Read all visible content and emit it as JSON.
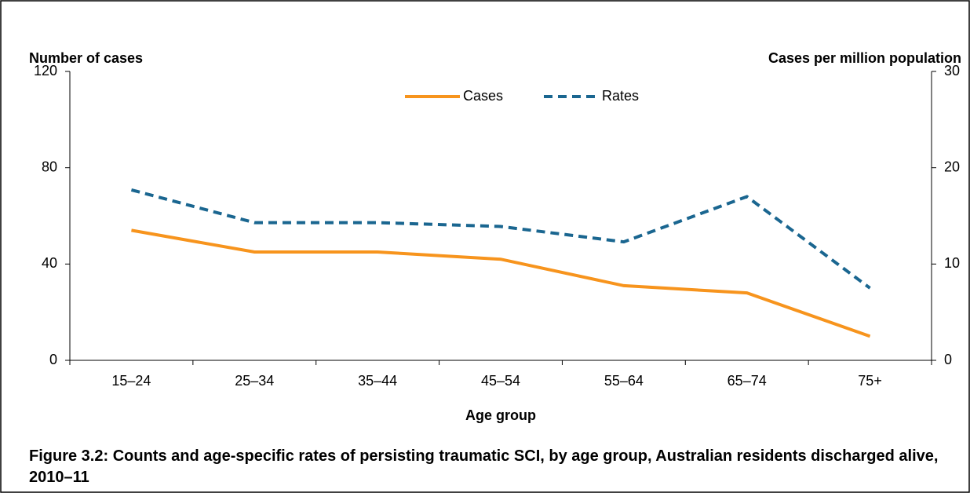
{
  "chart_data": {
    "type": "line",
    "y_label": "Number of cases",
    "y2_label": "Cases per million population",
    "x_label": "Age group",
    "caption": "Figure 3.2: Counts and age-specific rates of persisting traumatic SCI, by age group, Australian residents discharged alive, 2010–11",
    "categories": [
      "15–24",
      "25–34",
      "35–44",
      "45–54",
      "55–64",
      "65–74",
      "75+"
    ],
    "series": [
      {
        "name": "Cases",
        "color": "#f7941d",
        "values": [
          54,
          45,
          45,
          42,
          31,
          28,
          10
        ]
      },
      {
        "name": "Rates",
        "color": "#1a6690",
        "axis": "y2",
        "dashed": true,
        "values": [
          17.7,
          14.3,
          14.3,
          13.9,
          12.3,
          17.0,
          7.5
        ]
      }
    ],
    "ylim": [
      0,
      120
    ],
    "yticks": [
      0,
      40,
      80,
      120
    ],
    "y2lim": [
      0,
      30
    ],
    "y2ticks": [
      0,
      10,
      20,
      30
    ],
    "legend": "top"
  }
}
